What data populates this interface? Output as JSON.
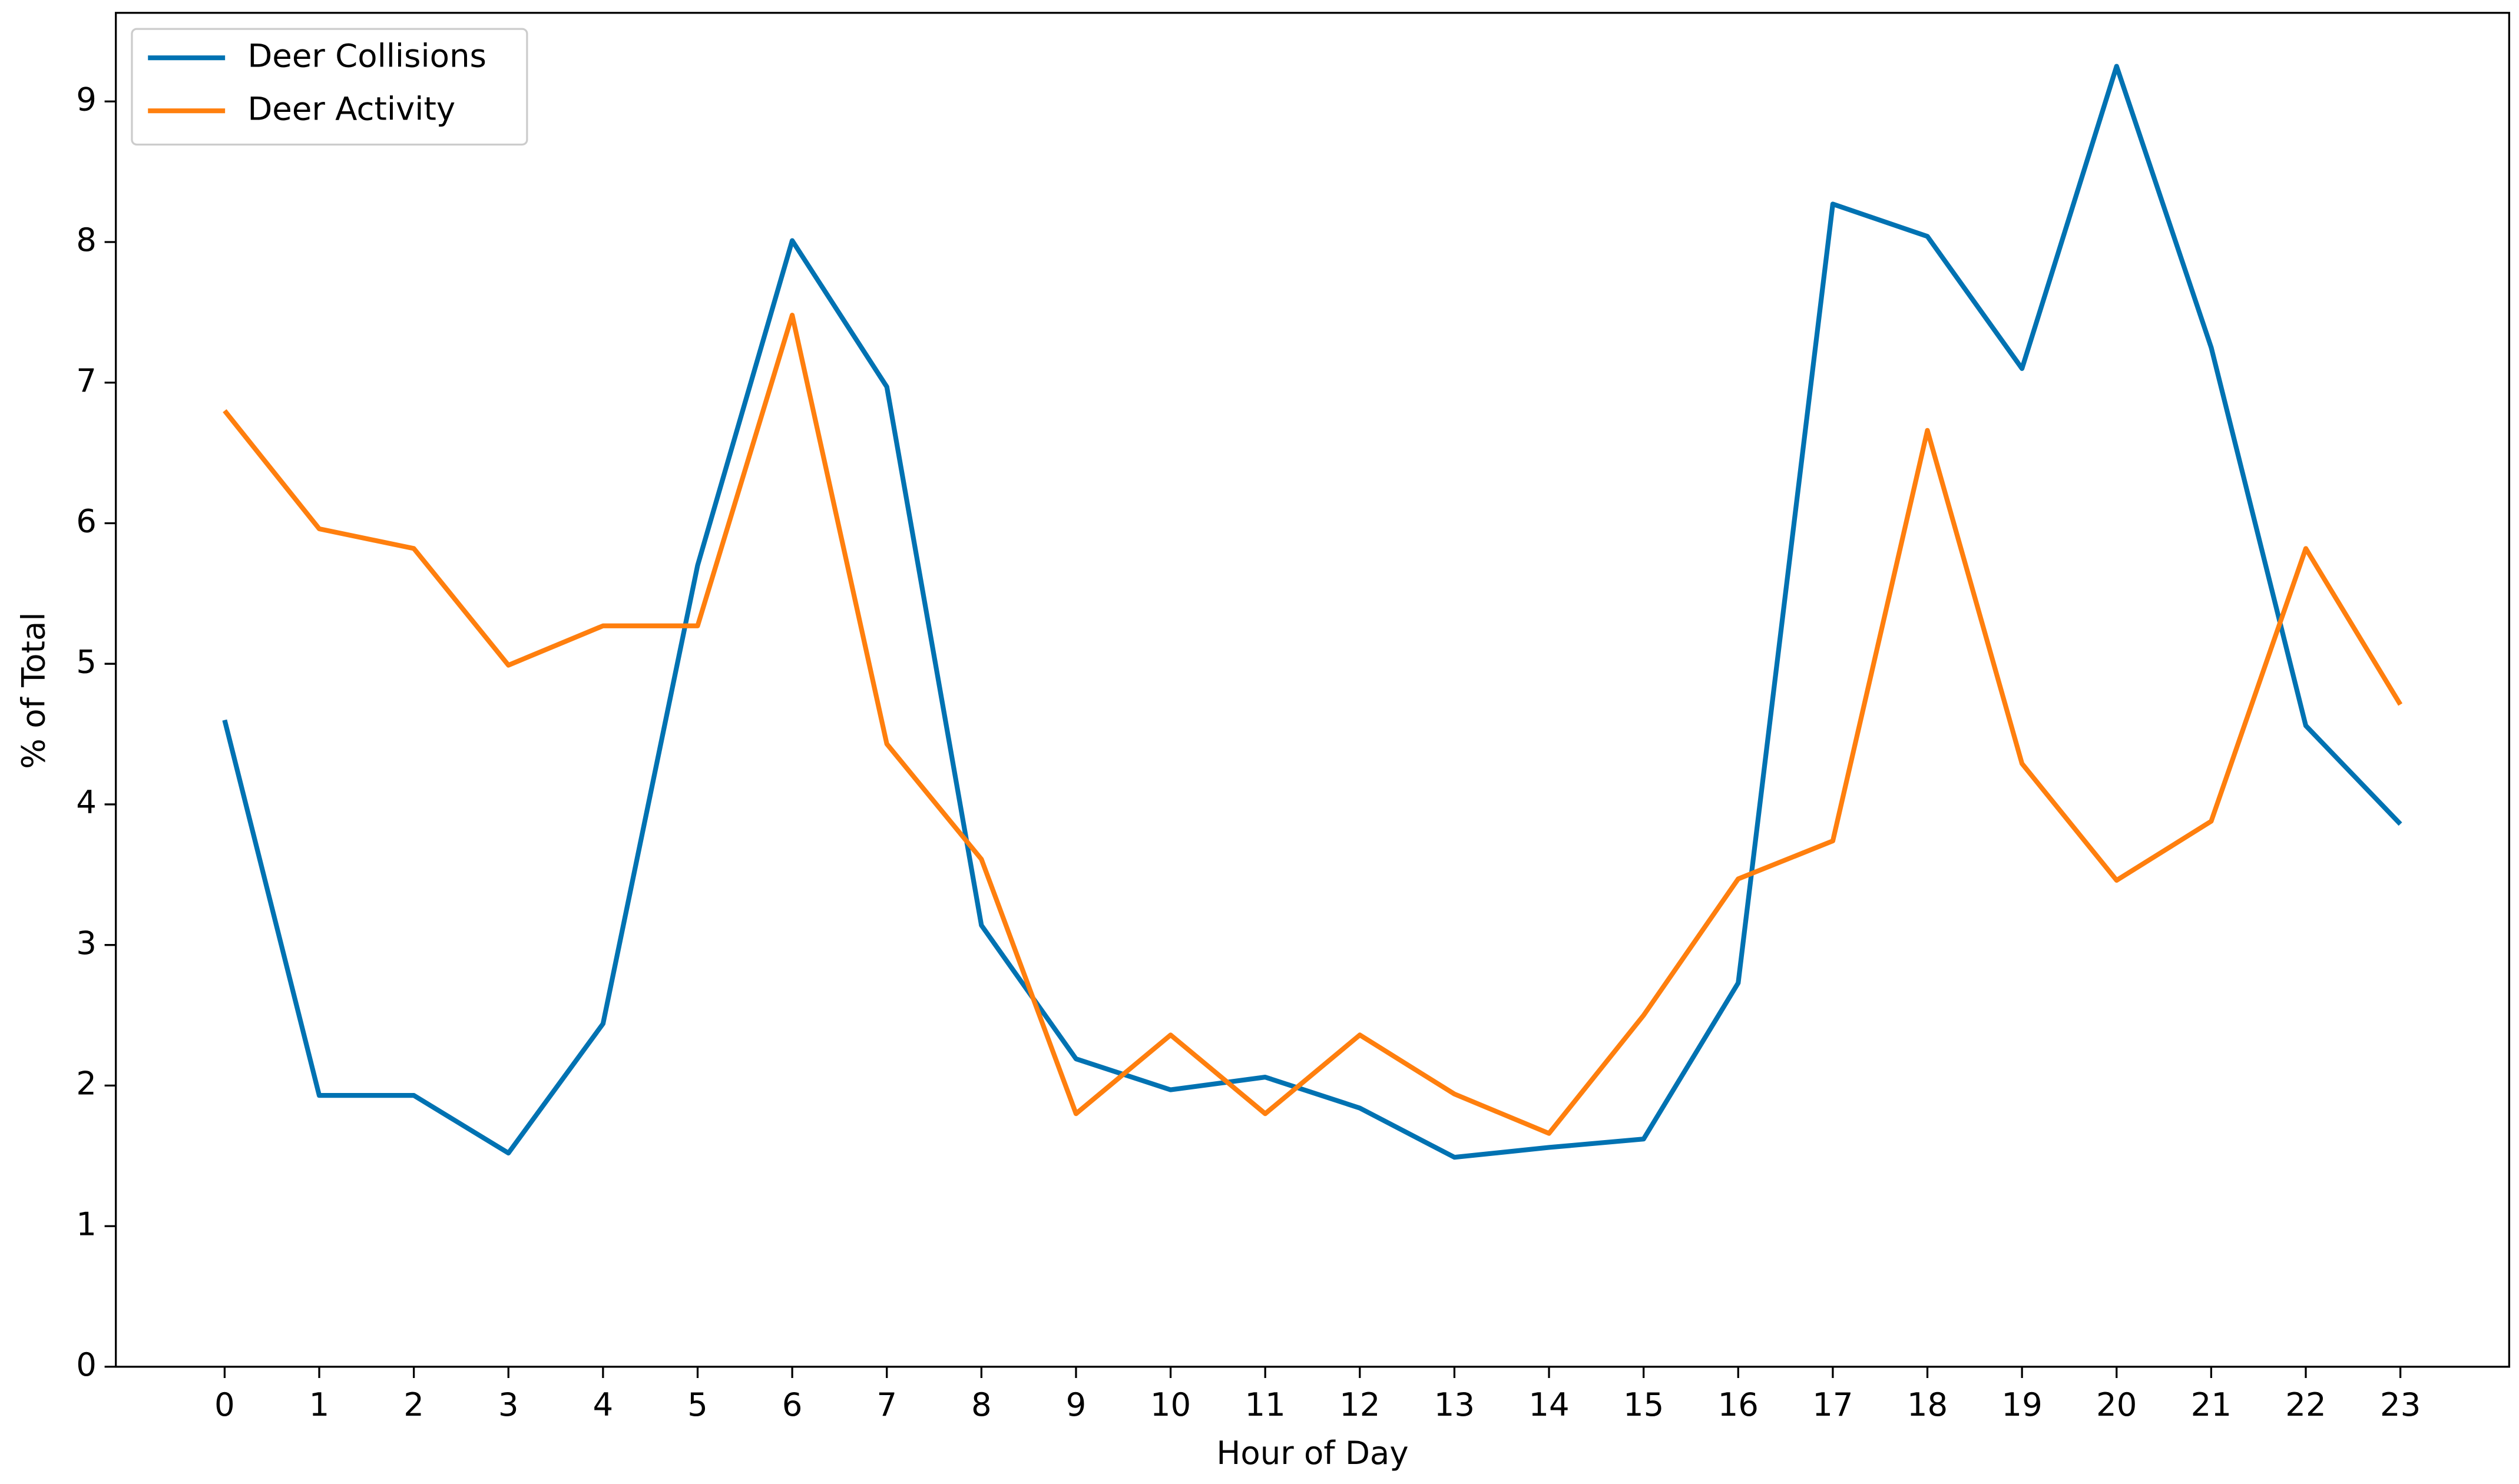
{
  "chart_data": {
    "type": "line",
    "xlabel": "Hour of Day",
    "ylabel": "% of Total",
    "x": [
      0,
      1,
      2,
      3,
      4,
      5,
      6,
      7,
      8,
      9,
      10,
      11,
      12,
      13,
      14,
      15,
      16,
      17,
      18,
      19,
      20,
      21,
      22,
      23
    ],
    "series": [
      {
        "name": "Deer Collisions",
        "color": "#0072b2",
        "values": [
          4.6,
          1.93,
          1.93,
          1.52,
          2.44,
          5.7,
          8.01,
          6.97,
          3.14,
          2.19,
          1.97,
          2.06,
          1.84,
          1.49,
          1.56,
          1.62,
          2.73,
          8.27,
          8.04,
          7.1,
          9.25,
          7.25,
          4.56,
          3.86
        ]
      },
      {
        "name": "Deer Activity",
        "color": "#ff7f0e",
        "values": [
          6.8,
          5.96,
          5.82,
          4.99,
          5.27,
          5.27,
          7.48,
          4.43,
          3.61,
          1.8,
          2.36,
          1.8,
          2.36,
          1.94,
          1.66,
          2.5,
          3.47,
          3.74,
          6.66,
          4.29,
          3.46,
          3.88,
          5.82,
          4.71
        ]
      }
    ],
    "xlim": [
      -1.15,
      24.15
    ],
    "ylim": [
      0,
      9.63
    ],
    "xticks": [
      0,
      1,
      2,
      3,
      4,
      5,
      6,
      7,
      8,
      9,
      10,
      11,
      12,
      13,
      14,
      15,
      16,
      17,
      18,
      19,
      20,
      21,
      22,
      23
    ],
    "yticks": [
      0,
      1,
      2,
      3,
      4,
      5,
      6,
      7,
      8,
      9
    ],
    "legend": "upper left",
    "grid": false
  }
}
